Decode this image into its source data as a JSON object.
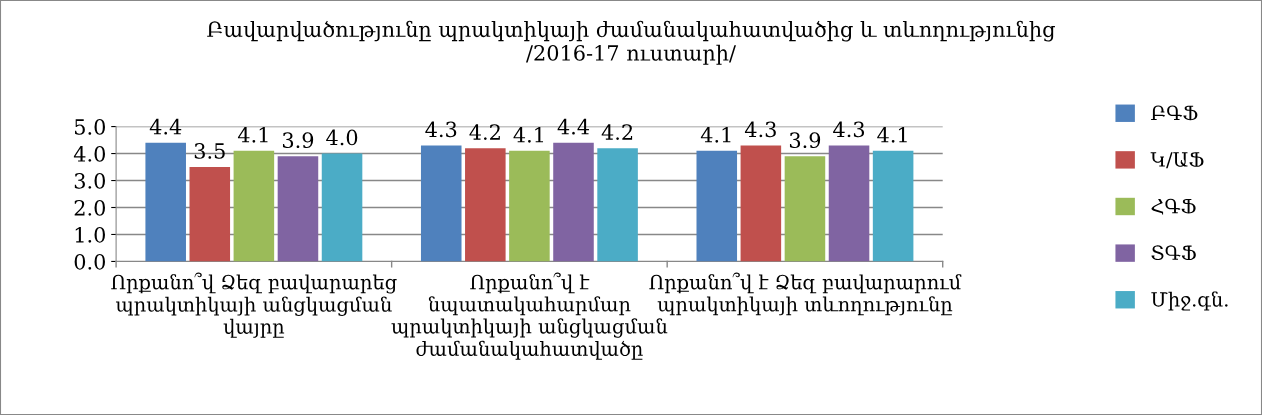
{
  "chart_data": {
    "type": "bar",
    "title": "Բավարվածությունը պրակտիկայի ժամանակահատվածից և տևողությունից\n/2016-17 ուստարի/",
    "categories": [
      "Որքանո՞վ Ձեզ բավարարեց\nպրակտիկայի անցկացման\nվայրը",
      "Որքանո՞վ է\nնպատակահարմար\nպրակտիկայի անցկացման\nժամանակահատվածը",
      "Որքանո՞վ է Ձեզ բավարարում\nպրակտիկայի տևողությունը"
    ],
    "series": [
      {
        "name": "ԲԳՖ",
        "color": "#4f81bd",
        "values": [
          4.4,
          4.3,
          4.1
        ],
        "value_labels": [
          "4.4",
          "4.3",
          "4.1"
        ]
      },
      {
        "name": "Կ/ԱՖ",
        "color": "#c0504d",
        "values": [
          3.5,
          4.2,
          4.3
        ],
        "value_labels": [
          "3.5",
          "4.2",
          "4.3"
        ]
      },
      {
        "name": "ՀԳՖ",
        "color": "#9bbb59",
        "values": [
          4.1,
          4.1,
          3.9
        ],
        "value_labels": [
          "4.1",
          "4.1",
          "3.9"
        ]
      },
      {
        "name": "ՏԳՖ",
        "color": "#8064a2",
        "values": [
          3.9,
          4.4,
          4.3
        ],
        "value_labels": [
          "3.9",
          "4.4",
          "4.3"
        ]
      },
      {
        "name": "Միջ.գն.",
        "color": "#4bacc6",
        "values": [
          4.0,
          4.2,
          4.1
        ],
        "value_labels": [
          "4.0",
          "4.2",
          "4.1"
        ]
      }
    ],
    "ylim": [
      0,
      5
    ],
    "yticks": [
      {
        "value": 0,
        "label": "0.0"
      },
      {
        "value": 1,
        "label": "1.0"
      },
      {
        "value": 2,
        "label": "2.0"
      },
      {
        "value": 3,
        "label": "3.0"
      },
      {
        "value": 4,
        "label": "4.0"
      },
      {
        "value": 5,
        "label": "5.0"
      }
    ],
    "grid": "y",
    "legend": "right"
  }
}
